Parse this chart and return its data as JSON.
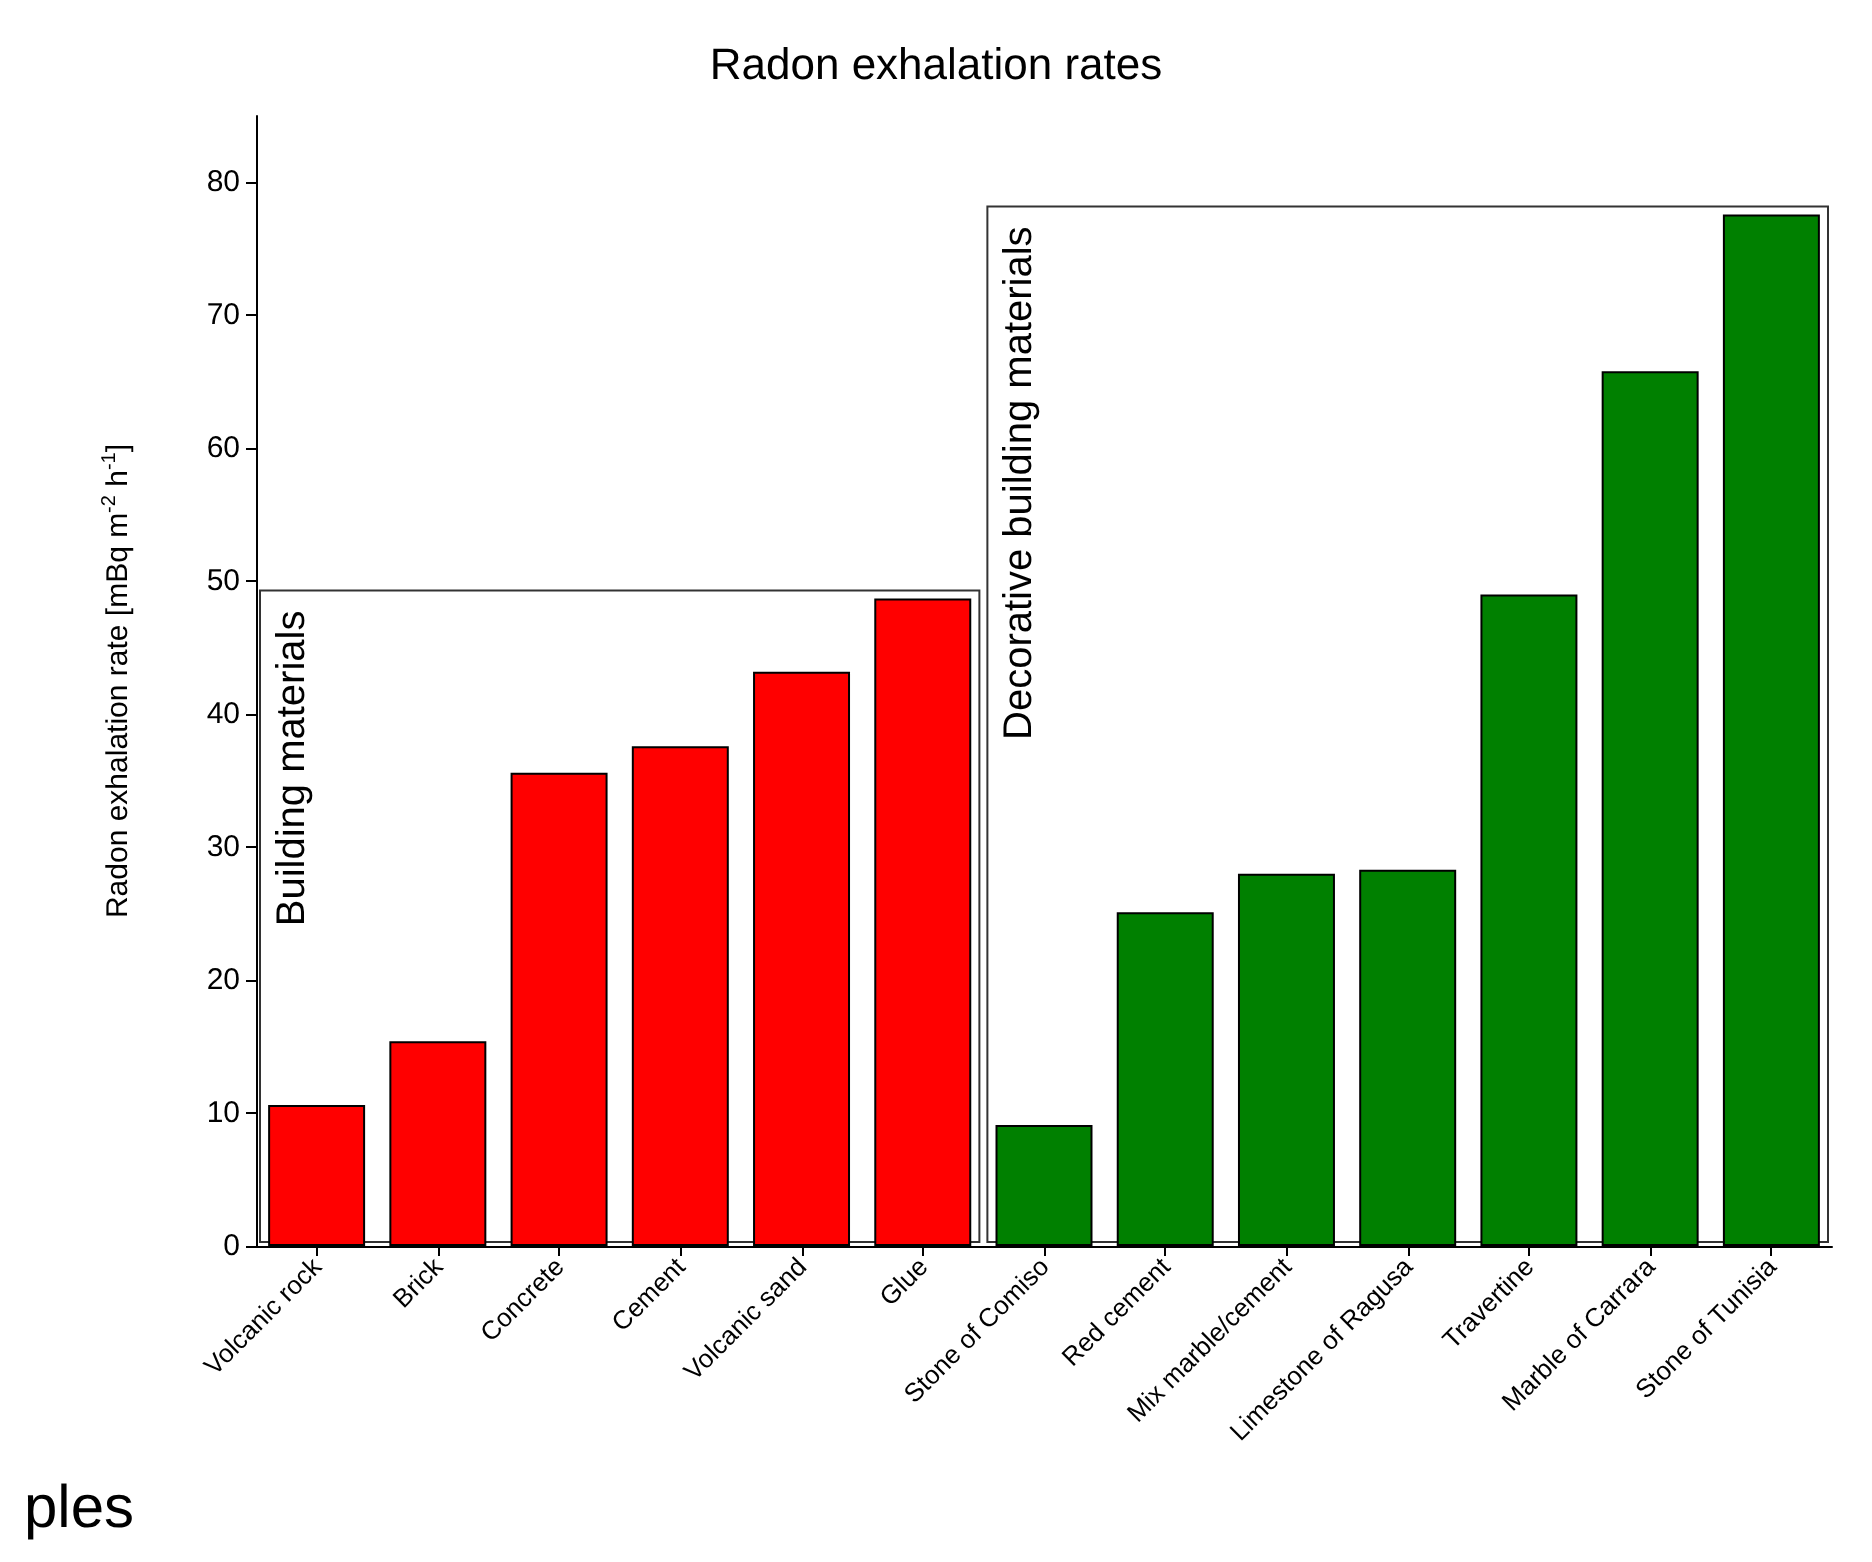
{
  "chart_data": {
    "type": "bar",
    "title": "Radon exhalation rates",
    "ylabel": "Radon exhalation rate [mBq m$^{-2}$ h$^{-1}$]",
    "categories": [
      "Volcanic rock",
      "Brick",
      "Concrete",
      "Cement",
      "Volcanic sand",
      "Glue",
      "Stone of Comiso",
      "Red cement",
      "Mix marble/cement",
      "Limestone of Ragusa",
      "Travertine",
      "Marble of Carrara",
      "Stone of Tunisia"
    ],
    "values": [
      10.6,
      15.4,
      35.6,
      37.6,
      43.2,
      48.7,
      9.1,
      25.1,
      28.0,
      28.3,
      49.0,
      65.8,
      77.6
    ],
    "colors": [
      "#ff0000",
      "#ff0000",
      "#ff0000",
      "#ff0000",
      "#ff0000",
      "#ff0000",
      "#008000",
      "#008000",
      "#008000",
      "#008000",
      "#008000",
      "#008000",
      "#008000"
    ],
    "ylim": [
      0,
      85
    ],
    "yticks": [
      0,
      10,
      20,
      30,
      40,
      50,
      60,
      70,
      80
    ],
    "grid": false,
    "annotations": [
      "Building materials",
      "Decorative building materials",
      "ples"
    ]
  }
}
